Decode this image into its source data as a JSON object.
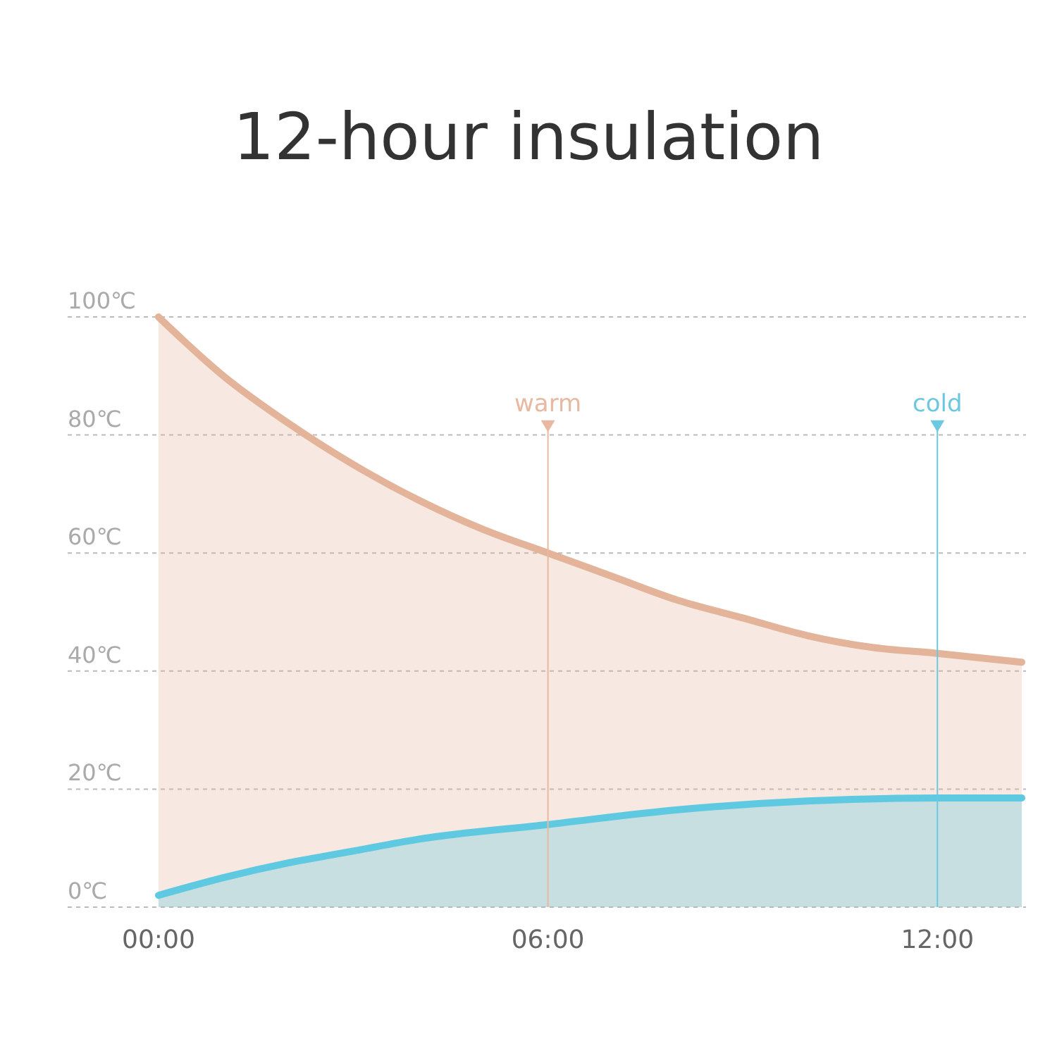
{
  "chart_data": {
    "type": "area",
    "title": "12-hour insulation",
    "xlim": [
      -1.4,
      13.3
    ],
    "xticks": [
      {
        "value": 0,
        "label": "00:00"
      },
      {
        "value": 6,
        "label": "06:00"
      },
      {
        "value": 12,
        "label": "12:00"
      }
    ],
    "ylim": [
      0,
      100
    ],
    "yticks": [
      {
        "value": 0,
        "label": "0℃"
      },
      {
        "value": 20,
        "label": "20℃"
      },
      {
        "value": 40,
        "label": "40℃"
      },
      {
        "value": 60,
        "label": "60℃"
      },
      {
        "value": 80,
        "label": "80℃"
      },
      {
        "value": 100,
        "label": "100℃"
      }
    ],
    "grid": "y",
    "line_style": "solid",
    "series": [
      {
        "color": "#e3b49a",
        "x": [
          0,
          1,
          2,
          3,
          4,
          5,
          6,
          7,
          8,
          9,
          10,
          11,
          12,
          13.3
        ],
        "values": [
          100,
          90,
          82,
          75,
          69,
          64,
          60,
          56,
          52,
          49,
          46,
          44,
          43,
          41.5
        ]
      },
      {
        "color": "#5ec9e0",
        "x": [
          0,
          1,
          2,
          3,
          4,
          6,
          8,
          10,
          12,
          13.3
        ],
        "values": [
          2,
          5,
          7.5,
          9.5,
          11.5,
          14,
          16.5,
          18,
          18.5,
          18.5
        ]
      }
    ],
    "ref_lines": [
      {
        "axis": "x",
        "value": 6,
        "label": "warm",
        "color": "#e8b8a0"
      },
      {
        "axis": "x",
        "value": 12,
        "label": "cold",
        "color": "#6cc8e0"
      }
    ]
  }
}
